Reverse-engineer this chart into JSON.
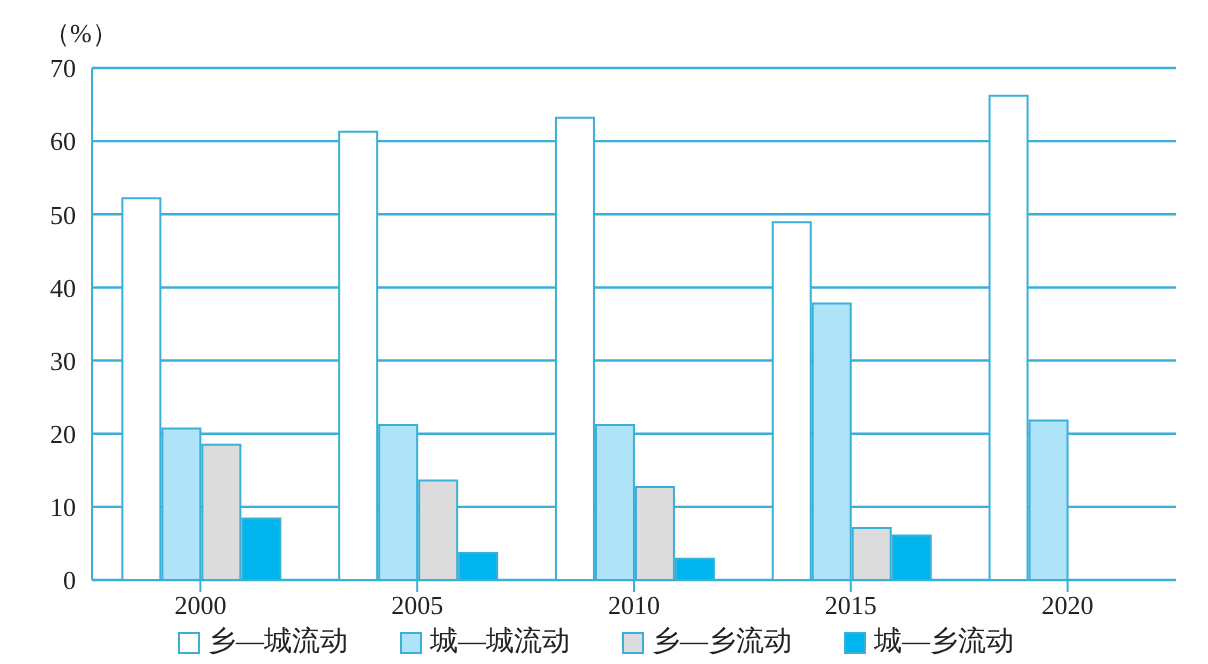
{
  "chart_data": {
    "type": "bar",
    "ylabel": "（%）",
    "categories": [
      "2000",
      "2005",
      "2010",
      "2015",
      "2020"
    ],
    "series": [
      {
        "name": "乡—城流动",
        "color": "#ffffff",
        "values": [
          52.2,
          61.3,
          63.2,
          48.9,
          66.2
        ]
      },
      {
        "name": "城—城流动",
        "color": "#aee3f8",
        "values": [
          20.7,
          21.2,
          21.2,
          37.8,
          21.8
        ]
      },
      {
        "name": "乡—乡流动",
        "color": "#dcdcdc",
        "values": [
          18.5,
          13.6,
          12.7,
          7.1,
          null
        ]
      },
      {
        "name": "城—乡流动",
        "color": "#00b4ee",
        "values": [
          8.4,
          3.7,
          2.9,
          6.1,
          null
        ]
      }
    ],
    "ylim": [
      0,
      70
    ],
    "yticks": [
      0,
      10,
      20,
      30,
      40,
      50,
      60,
      70
    ],
    "grid": "y",
    "legend": "bottom"
  }
}
